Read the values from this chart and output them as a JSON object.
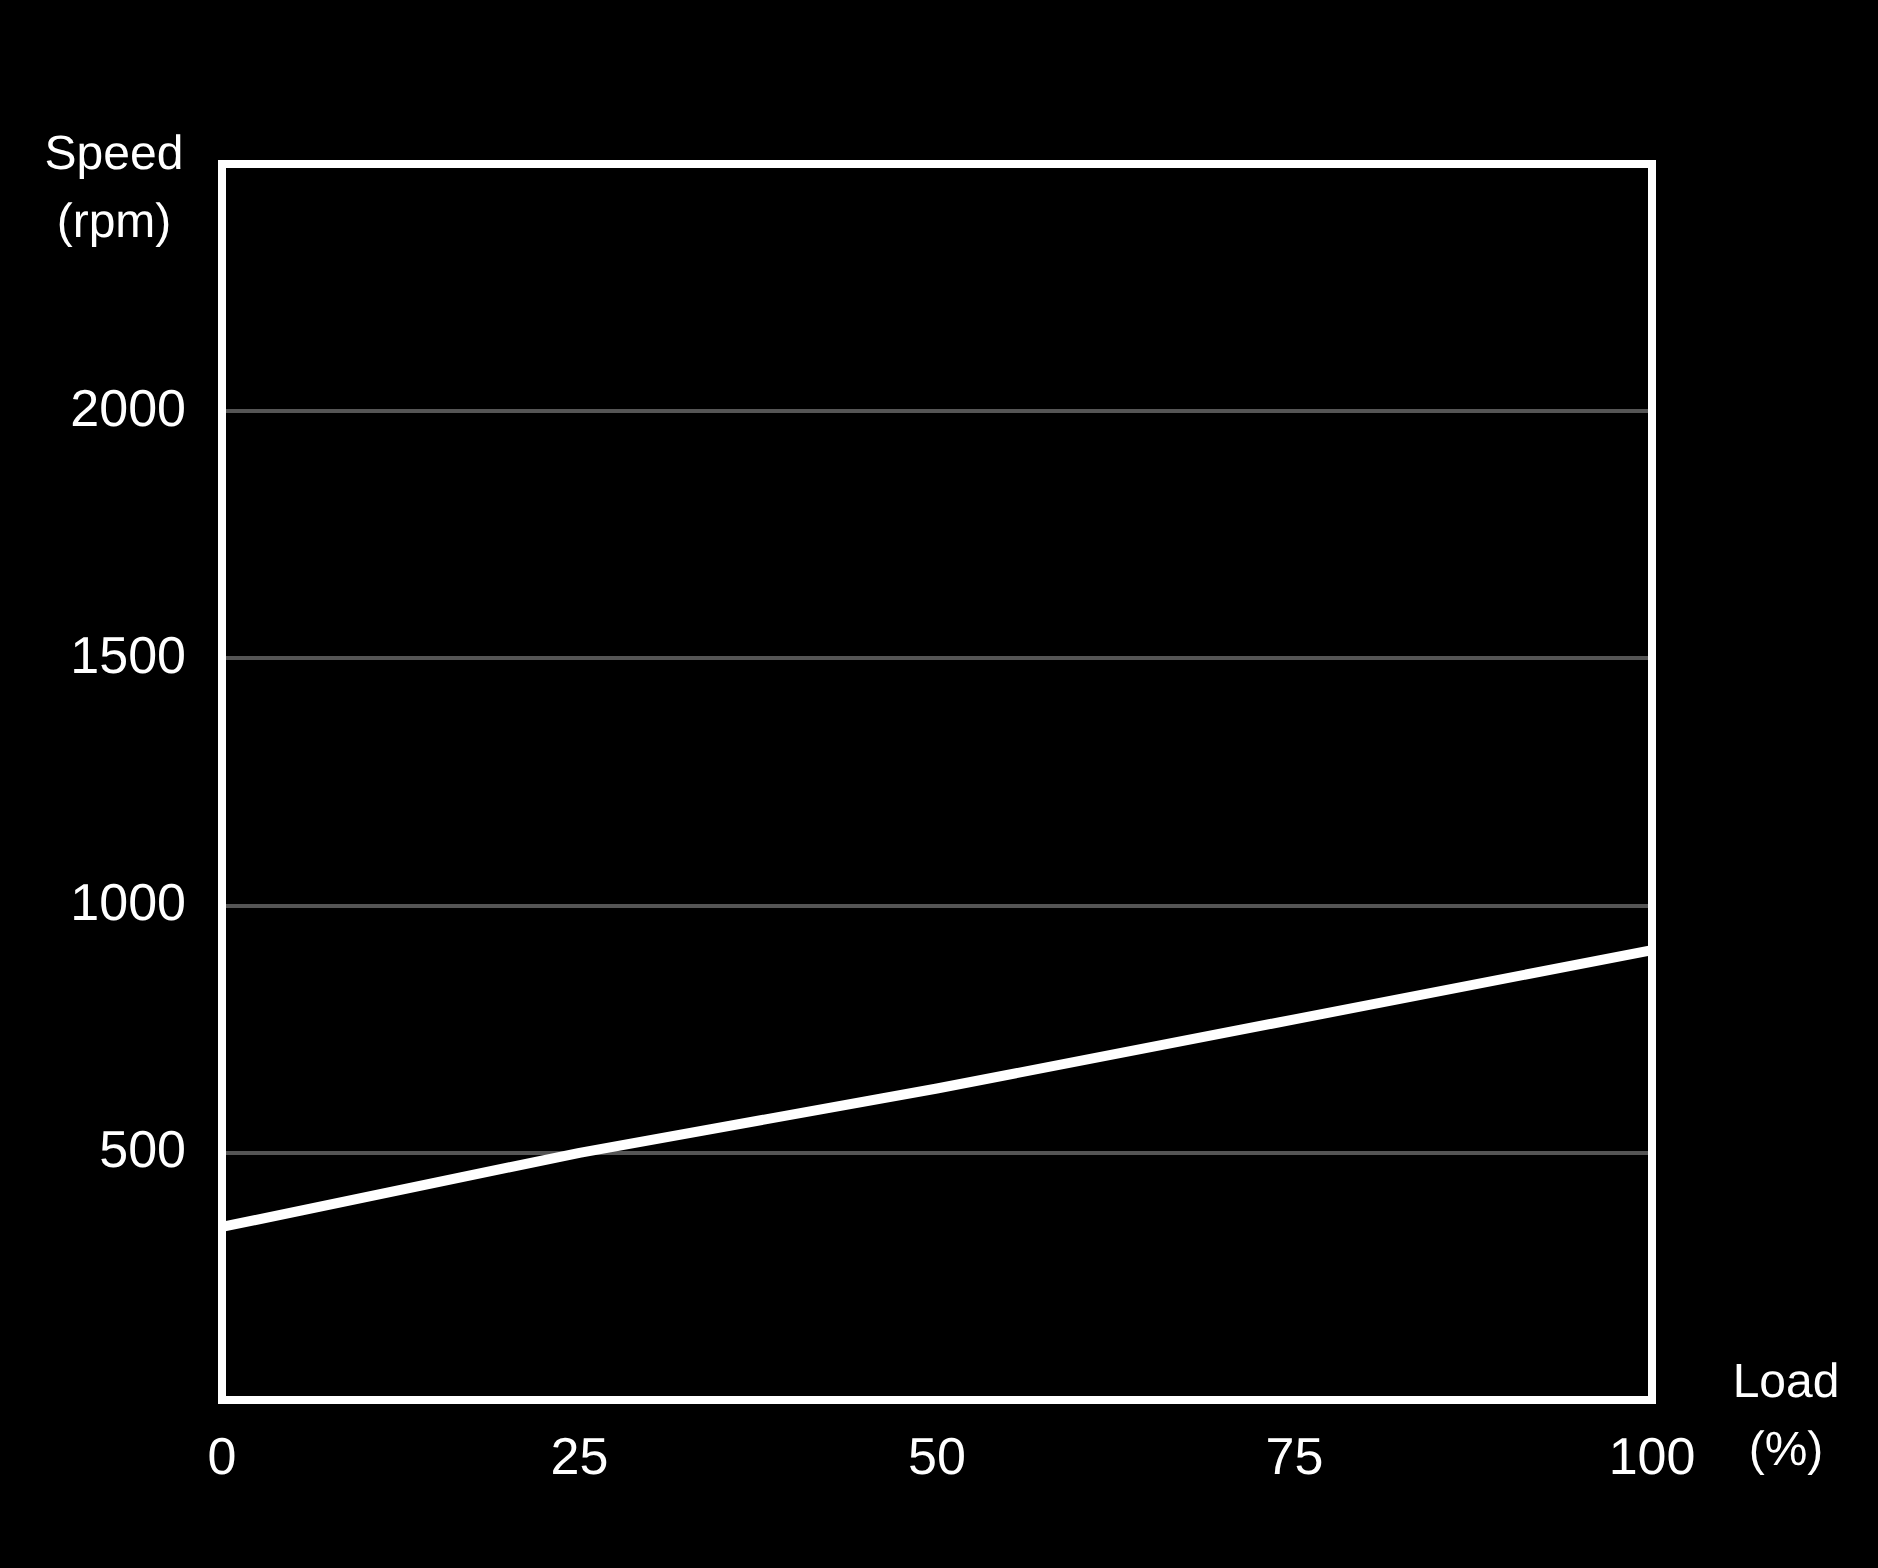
{
  "chart_data": {
    "type": "line",
    "xlabel": "Load (%)",
    "ylabel": "Speed (rpm)",
    "x": [
      0,
      25,
      50,
      75,
      100
    ],
    "series": [
      {
        "color": "#ffffff",
        "values": [
          350,
          500,
          630,
          770,
          910
        ]
      }
    ],
    "xlim": [
      0,
      100
    ],
    "xticks": [
      0,
      25,
      50,
      75,
      100
    ],
    "ylim": [
      0,
      2500
    ],
    "yticks": [
      500,
      1000,
      1500,
      2000
    ],
    "grid": "y",
    "legend": false,
    "marker": "none",
    "line_style": "solid"
  }
}
